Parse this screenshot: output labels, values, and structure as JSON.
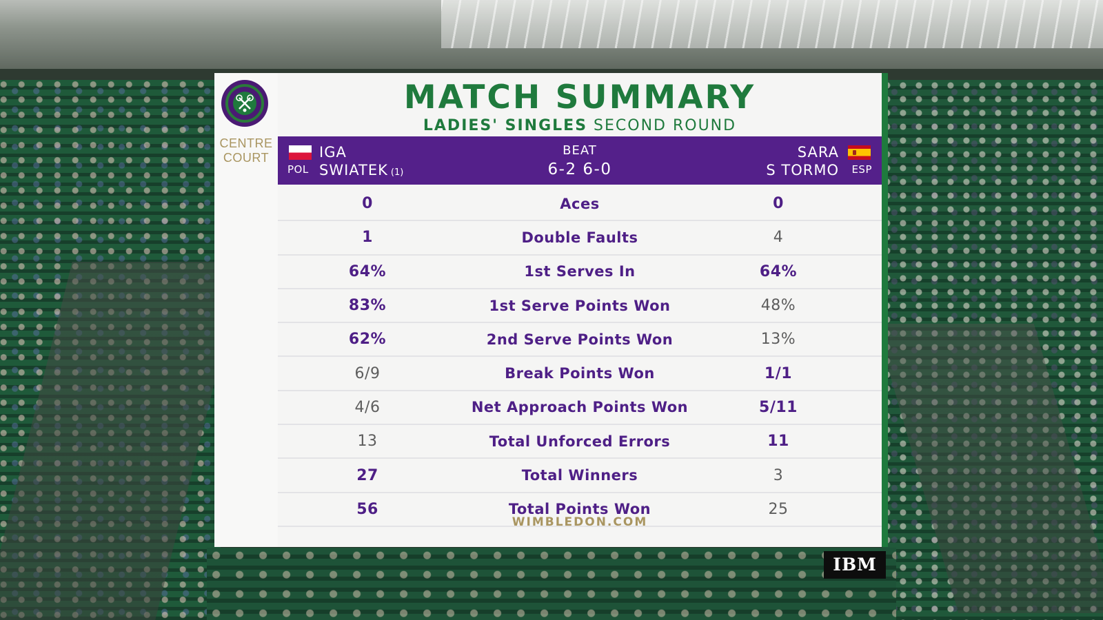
{
  "broadcast": {
    "title": "MATCH SUMMARY",
    "subtitle_bold": "LADIES' SINGLES",
    "subtitle_light": "SECOND ROUND",
    "venue_line1": "CENTRE",
    "venue_line2": "COURT",
    "footer": "WIMBLEDON.COM",
    "sponsor": "IBM"
  },
  "players": {
    "left": {
      "first": "IGA",
      "last": "SWIATEK",
      "seed": "(1)",
      "country": "POL",
      "flag": "poland-flag"
    },
    "right": {
      "first": "SARA",
      "last": "S TORMO",
      "country": "ESP",
      "flag": "spain-flag"
    },
    "result_label": "BEAT",
    "score": "6-2 6-0"
  },
  "stats": [
    {
      "label": "Aces",
      "left": "0",
      "right": "0",
      "left_lead": true,
      "right_lead": true
    },
    {
      "label": "Double Faults",
      "left": "1",
      "right": "4",
      "left_lead": true,
      "right_lead": false
    },
    {
      "label": "1st Serves In",
      "left": "64%",
      "right": "64%",
      "left_lead": true,
      "right_lead": true
    },
    {
      "label": "1st Serve Points Won",
      "left": "83%",
      "right": "48%",
      "left_lead": true,
      "right_lead": false
    },
    {
      "label": "2nd Serve Points Won",
      "left": "62%",
      "right": "13%",
      "left_lead": true,
      "right_lead": false
    },
    {
      "label": "Break Points Won",
      "left": "6/9",
      "right": "1/1",
      "left_lead": false,
      "right_lead": true
    },
    {
      "label": "Net Approach Points Won",
      "left": "4/6",
      "right": "5/11",
      "left_lead": false,
      "right_lead": true
    },
    {
      "label": "Total Unforced Errors",
      "left": "13",
      "right": "11",
      "left_lead": false,
      "right_lead": true
    },
    {
      "label": "Total Winners",
      "left": "27",
      "right": "3",
      "left_lead": true,
      "right_lead": false
    },
    {
      "label": "Total Points Won",
      "left": "56",
      "right": "25",
      "left_lead": true,
      "right_lead": false
    }
  ],
  "colors": {
    "purple": "#54208a",
    "green": "#1f7a3d",
    "gold": "#a99560"
  }
}
